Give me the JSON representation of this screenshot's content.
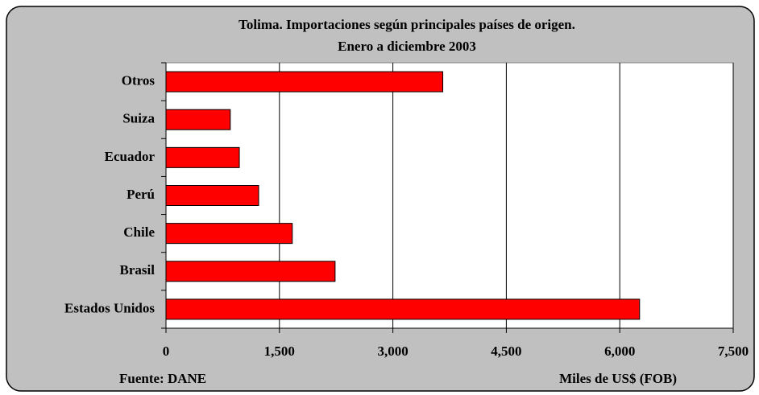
{
  "chart_data": {
    "type": "barh",
    "title": "Tolima.  Importaciones según principales países de origen.",
    "subtitle": "Enero a diciembre 2003",
    "source": "Fuente: DANE",
    "x_label": "Miles de US$ (FOB)",
    "categories": [
      "Otros",
      "Suiza",
      "Ecuador",
      "Perú",
      "Chile",
      "Brasil",
      "Estados Unidos"
    ],
    "values": [
      3660,
      850,
      970,
      1225,
      1670,
      2236,
      6262
    ],
    "color": "#ff0000",
    "xlim": [
      0,
      7500
    ],
    "xticks": [
      0,
      {
        "value": 1500,
        "label": "1,500"
      },
      {
        "value": 3000,
        "label": "3,000"
      },
      {
        "value": 4500,
        "label": "4,500"
      },
      {
        "value": 6000,
        "label": "6,000"
      },
      {
        "value": 7500,
        "label": "7,500"
      }
    ],
    "grid": true
  }
}
